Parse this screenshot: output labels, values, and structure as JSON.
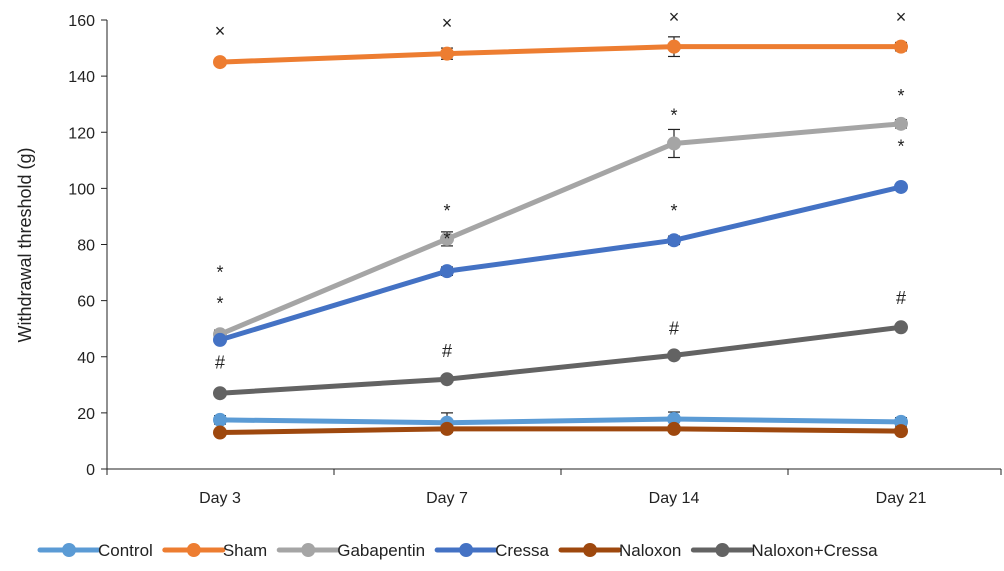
{
  "chart_data": {
    "type": "line",
    "title": "",
    "xlabel": "",
    "ylabel": "Withdrawal threshold (g)",
    "categories": [
      "Day 3",
      "Day 7",
      "Day 14",
      "Day 21"
    ],
    "ylim": [
      0,
      160
    ],
    "yticks": [
      0,
      20,
      40,
      60,
      80,
      100,
      120,
      140,
      160
    ],
    "grid": false,
    "legend_position": "bottom",
    "series": [
      {
        "name": "Control",
        "color": "#5B9BD5",
        "values": [
          17.5,
          16.5,
          17.8,
          16.8
        ],
        "error": [
          1.5,
          3.5,
          2.5,
          1.5
        ]
      },
      {
        "name": "Sham",
        "color": "#ED7D31",
        "values": [
          145,
          148,
          150.5,
          150.5
        ],
        "error": [
          1,
          2,
          3.5,
          1.5
        ]
      },
      {
        "name": "Gabapentin",
        "color": "#A5A5A5",
        "values": [
          48,
          82,
          116,
          123
        ],
        "error": [
          1.5,
          2.5,
          5,
          1.5
        ]
      },
      {
        "name": "Cressa",
        "color": "#4472C4",
        "values": [
          46,
          70.5,
          81.5,
          100.5
        ],
        "error": [
          1,
          1.5,
          1.5,
          1
        ]
      },
      {
        "name": "Naloxon",
        "color": "#9E480E",
        "values": [
          13,
          14.3,
          14.3,
          13.5
        ],
        "error": [
          0.5,
          0.8,
          0.8,
          0.5
        ]
      },
      {
        "name": "Naloxon+Cressa",
        "color": "#636363",
        "values": [
          27,
          32,
          40.5,
          50.5
        ],
        "error": [
          0.5,
          0.8,
          0.8,
          0.8
        ]
      }
    ],
    "annotations": [
      {
        "text": "×",
        "x": "Day 3",
        "y": 156
      },
      {
        "text": "×",
        "x": "Day 7",
        "y": 159
      },
      {
        "text": "×",
        "x": "Day 14",
        "y": 161
      },
      {
        "text": "×",
        "x": "Day 21",
        "y": 161
      },
      {
        "text": "*",
        "x": "Day 3",
        "y": 70
      },
      {
        "text": "*",
        "x": "Day 3",
        "y": 59
      },
      {
        "text": "#",
        "x": "Day 3",
        "y": 38
      },
      {
        "text": "*",
        "x": "Day 7",
        "y": 92
      },
      {
        "text": "*",
        "x": "Day 7",
        "y": 82
      },
      {
        "text": "#",
        "x": "Day 7",
        "y": 42
      },
      {
        "text": "*",
        "x": "Day 14",
        "y": 126
      },
      {
        "text": "*",
        "x": "Day 14",
        "y": 92
      },
      {
        "text": "#",
        "x": "Day 14",
        "y": 50
      },
      {
        "text": "*",
        "x": "Day 21",
        "y": 133
      },
      {
        "text": "*",
        "x": "Day 21",
        "y": 115
      },
      {
        "text": "#",
        "x": "Day 21",
        "y": 61
      }
    ]
  }
}
